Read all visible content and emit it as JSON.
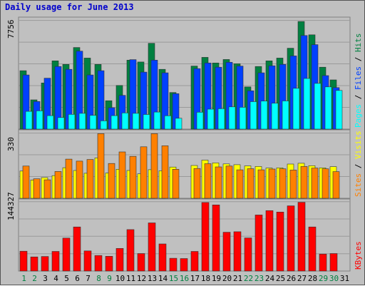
{
  "chart_data": {
    "title": "Daily usage for June 2013",
    "x": [
      "1",
      "2",
      "3",
      "4",
      "5",
      "6",
      "7",
      "8",
      "9",
      "10",
      "11",
      "12",
      "13",
      "14",
      "15",
      "16",
      "17",
      "18",
      "19",
      "20",
      "21",
      "22",
      "23",
      "24",
      "25",
      "26",
      "27",
      "28",
      "29",
      "30",
      "31"
    ],
    "weekend_days": [
      "1",
      "2",
      "8",
      "9",
      "15",
      "16",
      "22",
      "23",
      "29",
      "30"
    ],
    "colors": {
      "title": "#0000cc",
      "hits": "#008040",
      "files": "#0040ff",
      "pages": "#00ffff",
      "visits": "#ffff00",
      "sites": "#ff8000",
      "kbytes": "#ff0000",
      "weekend_tick": "#008040",
      "weekday_tick": "#000000",
      "background": "#c0c0c0"
    },
    "panels": [
      {
        "type": "bar",
        "max_label": "7756",
        "ylim": [
          0,
          7756
        ],
        "right_labels": [
          {
            "text": "Pages",
            "color": "#00ffff"
          },
          {
            "text": " / ",
            "color": "#000000"
          },
          {
            "text": "Files",
            "color": "#0040ff"
          },
          {
            "text": " / ",
            "color": "#000000"
          },
          {
            "text": "Hits",
            "color": "#008040"
          }
        ],
        "series": [
          {
            "name": "Hits",
            "color": "#008040",
            "values": [
              4150,
              2080,
              3280,
              4850,
              4600,
              5800,
              5050,
              4600,
              2020,
              3100,
              4900,
              4770,
              6100,
              4250,
              2600,
              0,
              4480,
              5100,
              4700,
              4950,
              4650,
              3000,
              4450,
              4850,
              5050,
              5750,
              7650,
              6700,
              4400,
              3500,
              0
            ]
          },
          {
            "name": "Files",
            "color": "#0040ff",
            "values": [
              3850,
              1960,
              3620,
              4450,
              4250,
              5540,
              3850,
              4150,
              1520,
              2400,
              4940,
              4050,
              4900,
              4000,
              2520,
              0,
              4300,
              4700,
              4400,
              4750,
              4480,
              2720,
              4000,
              4500,
              4600,
              5200,
              6650,
              6000,
              3800,
              2950,
              0
            ]
          },
          {
            "name": "Pages",
            "color": "#00ffff",
            "values": [
              1260,
              1300,
              960,
              820,
              1050,
              1120,
              980,
              590,
              960,
              1150,
              1120,
              1040,
              1210,
              950,
              770,
              0,
              1200,
              1420,
              1450,
              1580,
              1550,
              1950,
              1990,
              1840,
              2000,
              2900,
              3600,
              3250,
              3000,
              2750,
              0
            ]
          }
        ]
      },
      {
        "type": "bar",
        "max_label": "330",
        "ylim": [
          0,
          330
        ],
        "right_labels": [
          {
            "text": "Sites",
            "color": "#ff8000"
          },
          {
            "text": " / ",
            "color": "#000000"
          },
          {
            "text": "Visits",
            "color": "#ffff00"
          }
        ],
        "series": [
          {
            "name": "Visits",
            "color": "#ffff00",
            "values": [
              137,
              92,
              104,
              114,
              154,
              140,
              126,
              203,
              127,
              146,
              140,
              123,
              144,
              138,
              157,
              0,
              165,
              192,
              178,
              173,
              169,
              163,
              160,
              152,
              153,
              172,
              176,
              164,
              153,
              159,
              0
            ]
          },
          {
            "name": "Sites",
            "color": "#ff8000",
            "values": [
              162,
              98,
              93,
              135,
              197,
              187,
              195,
              325,
              175,
              233,
              211,
              259,
              325,
              264,
              146,
              0,
              150,
              174,
              158,
              162,
              143,
              149,
              143,
              147,
              148,
              142,
              160,
              152,
              148,
              134,
              0
            ]
          }
        ]
      },
      {
        "type": "bar",
        "max_label": "144327",
        "ylim": [
          0,
          144327
        ],
        "right_labels": [
          {
            "text": "KBytes",
            "color": "#ff0000"
          }
        ],
        "series": [
          {
            "name": "KBytes",
            "color": "#ff0000",
            "values": [
              41300,
              29500,
              30300,
              40900,
              68800,
              92000,
              42000,
              32500,
              30800,
              47200,
              86500,
              36400,
              100400,
              56600,
              26600,
              26000,
              40900,
              143000,
              138000,
              81000,
              82000,
              69000,
              117000,
              126000,
              123000,
              136000,
              143500,
              92000,
              35400,
              36400,
              0
            ]
          }
        ]
      }
    ]
  }
}
